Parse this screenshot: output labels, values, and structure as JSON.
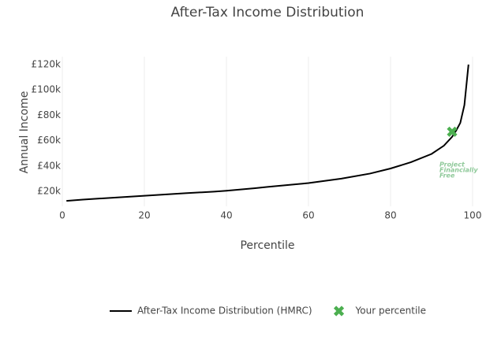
{
  "chart_data": {
    "type": "line",
    "title": "After-Tax Income Distribution",
    "x_label": "Percentile",
    "y_label": "Annual Income",
    "xlim": [
      0,
      100
    ],
    "xticks": [
      0,
      20,
      40,
      60,
      80,
      100
    ],
    "ylim": [
      8200,
      126200
    ],
    "yticks": [
      {
        "value": 20000,
        "label": "£20k"
      },
      {
        "value": 40000,
        "label": "£40k"
      },
      {
        "value": 60000,
        "label": "£60k"
      },
      {
        "value": 80000,
        "label": "£80k"
      },
      {
        "value": 100000,
        "label": "£100k"
      },
      {
        "value": 120000,
        "label": "£120k"
      }
    ],
    "grid": "x",
    "legend": "bottom",
    "watermark": [
      "Project",
      "Financially",
      "Free"
    ],
    "series": [
      {
        "name": "After-Tax Income Distribution (HMRC)",
        "color": "#000000",
        "mode": "line",
        "x": [
          1,
          5,
          10,
          20,
          30,
          37,
          40,
          47,
          50,
          60,
          68,
          75,
          80,
          85,
          90,
          93,
          95,
          96,
          97,
          98,
          99
        ],
        "values": [
          12500,
          13500,
          14500,
          16500,
          18500,
          19800,
          20500,
          22500,
          23500,
          26500,
          30000,
          34000,
          38000,
          43000,
          49500,
          56000,
          63000,
          68000,
          74000,
          88000,
          120000
        ]
      },
      {
        "name": "Your percentile",
        "color": "#4caf50",
        "mode": "marker",
        "x": [
          95
        ],
        "values": [
          67000
        ]
      }
    ]
  }
}
